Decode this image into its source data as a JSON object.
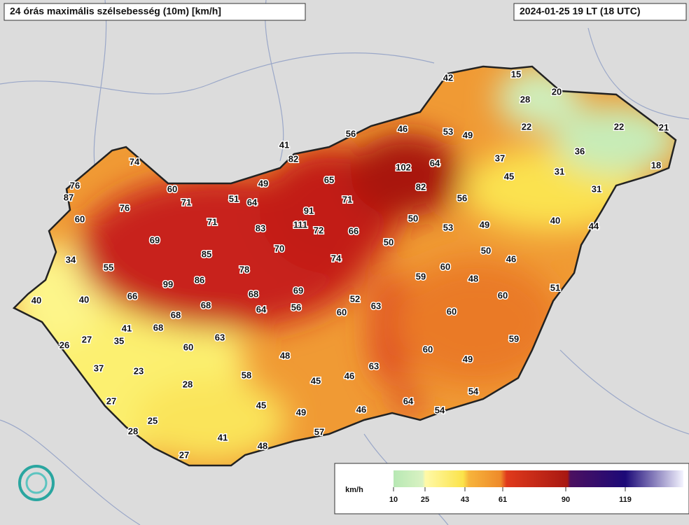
{
  "header": {
    "title": "24 órás maximális szélsebesség (10m) [km/h]",
    "timestamp": "2024-01-25 19 LT (18 UTC)"
  },
  "stations": [
    42,
    15,
    20,
    28,
    22,
    22,
    21,
    56,
    46,
    53,
    49,
    41,
    82,
    36,
    37,
    18,
    74,
    102,
    64,
    31,
    45,
    76,
    87,
    49,
    65,
    82,
    60,
    71,
    51,
    64,
    31,
    76,
    71,
    56,
    60,
    91,
    71,
    111,
    72,
    83,
    50,
    53,
    49,
    40,
    44,
    66,
    69,
    50,
    70,
    85,
    50,
    46,
    34,
    55,
    74,
    60,
    78,
    59,
    48,
    86,
    99,
    51,
    69,
    68,
    40,
    40,
    66,
    60,
    52,
    63,
    68,
    64,
    56,
    60,
    60,
    68,
    41,
    68,
    63,
    59,
    27,
    35,
    26,
    60,
    60,
    48,
    49,
    37,
    23,
    63,
    58,
    46,
    45,
    28,
    54,
    27,
    64,
    45,
    49,
    46,
    54,
    25,
    28,
    57,
    41,
    48,
    27
  ],
  "legend": {
    "unit": "km/h",
    "ticks": [
      10,
      25,
      43,
      61,
      90,
      119
    ]
  }
}
